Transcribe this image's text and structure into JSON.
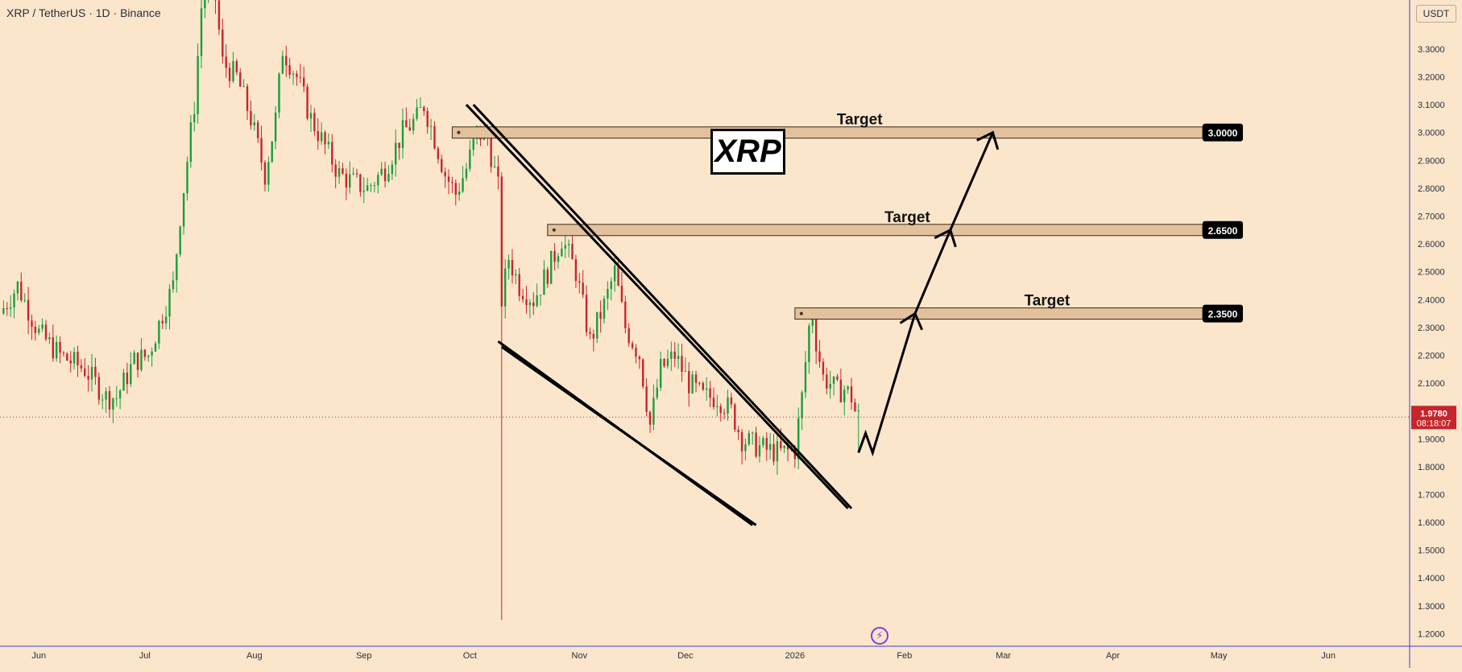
{
  "header": {
    "symbol_title": "XRP / TetherUS · 1D · Binance",
    "currency_button": "USDT"
  },
  "overlay": {
    "xrp_label": "XRP",
    "logo_icon": "lightning-badge-icon"
  },
  "last_price": {
    "value": "1.9780",
    "countdown": "08:18:07"
  },
  "colors": {
    "background": "#fbe6cc",
    "up_candle": "#1a9e3a",
    "down_candle": "#c8242b",
    "price_badge": "#c8242b",
    "zone_fill": "#e2c19c",
    "axis_line": "#3b3bd6"
  },
  "chart_data": {
    "type": "candlestick",
    "title": "XRP / TetherUS · 1D · Binance",
    "y_axis": {
      "unit": "USDT",
      "ylim": [
        1.155,
        3.476
      ],
      "ticks": [
        "1.2000",
        "1.3000",
        "1.4000",
        "1.5000",
        "1.6000",
        "1.7000",
        "1.8000",
        "1.9000",
        "2.1000",
        "2.2000",
        "2.3000",
        "2.4000",
        "2.5000",
        "2.6000",
        "2.7000",
        "2.8000",
        "2.9000",
        "3.0000",
        "3.1000",
        "3.2000",
        "3.3000"
      ]
    },
    "x_axis": {
      "range": [
        "2025-05-21",
        "2026-06-24"
      ],
      "ticks": [
        {
          "label": "Jun",
          "date": "2025-06-01"
        },
        {
          "label": "Jul",
          "date": "2025-07-01"
        },
        {
          "label": "Aug",
          "date": "2025-08-01"
        },
        {
          "label": "Sep",
          "date": "2025-09-01"
        },
        {
          "label": "Oct",
          "date": "2025-10-01"
        },
        {
          "label": "Nov",
          "date": "2025-11-01"
        },
        {
          "label": "Dec",
          "date": "2025-12-01"
        },
        {
          "label": "2026",
          "date": "2026-01-01"
        },
        {
          "label": "Feb",
          "date": "2026-02-01"
        },
        {
          "label": "Mar",
          "date": "2026-03-01"
        },
        {
          "label": "Apr",
          "date": "2026-04-01"
        },
        {
          "label": "May",
          "date": "2026-05-01"
        },
        {
          "label": "Jun",
          "date": "2026-06-01"
        }
      ]
    },
    "price_path": [
      [
        "2025-05-21",
        2.35
      ],
      [
        "2025-05-26",
        2.45
      ],
      [
        "2025-06-01",
        2.28
      ],
      [
        "2025-06-07",
        2.2
      ],
      [
        "2025-06-14",
        2.15
      ],
      [
        "2025-06-20",
        2.05
      ],
      [
        "2025-06-23",
        2.05
      ],
      [
        "2025-06-28",
        2.18
      ],
      [
        "2025-07-02",
        2.2
      ],
      [
        "2025-07-06",
        2.35
      ],
      [
        "2025-07-09",
        2.45
      ],
      [
        "2025-07-11",
        2.7
      ],
      [
        "2025-07-13",
        2.9
      ],
      [
        "2025-07-15",
        3.1
      ],
      [
        "2025-07-17",
        3.45
      ],
      [
        "2025-07-19",
        3.55
      ],
      [
        "2025-07-21",
        3.48
      ],
      [
        "2025-07-23",
        3.25
      ],
      [
        "2025-07-27",
        3.2
      ],
      [
        "2025-07-31",
        3.05
      ],
      [
        "2025-08-04",
        2.85
      ],
      [
        "2025-08-07",
        3.05
      ],
      [
        "2025-08-09",
        3.3
      ],
      [
        "2025-08-13",
        3.2
      ],
      [
        "2025-08-17",
        3.05
      ],
      [
        "2025-08-21",
        2.95
      ],
      [
        "2025-08-25",
        2.85
      ],
      [
        "2025-08-29",
        2.82
      ],
      [
        "2025-09-02",
        2.8
      ],
      [
        "2025-09-07",
        2.87
      ],
      [
        "2025-09-12",
        3.0
      ],
      [
        "2025-09-16",
        3.05
      ],
      [
        "2025-09-18",
        3.1
      ],
      [
        "2025-09-21",
        2.98
      ],
      [
        "2025-09-24",
        2.85
      ],
      [
        "2025-09-27",
        2.78
      ],
      [
        "2025-09-30",
        2.87
      ],
      [
        "2025-10-03",
        3.0
      ],
      [
        "2025-10-06",
        2.98
      ],
      [
        "2025-10-09",
        2.8
      ],
      [
        "2025-10-10",
        2.4
      ],
      [
        "2025-10-12",
        2.55
      ],
      [
        "2025-10-15",
        2.45
      ],
      [
        "2025-10-19",
        2.4
      ],
      [
        "2025-10-23",
        2.5
      ],
      [
        "2025-10-27",
        2.62
      ],
      [
        "2025-10-31",
        2.5
      ],
      [
        "2025-11-04",
        2.25
      ],
      [
        "2025-11-08",
        2.38
      ],
      [
        "2025-11-11",
        2.5
      ],
      [
        "2025-11-14",
        2.3
      ],
      [
        "2025-11-18",
        2.2
      ],
      [
        "2025-11-21",
        1.95
      ],
      [
        "2025-11-24",
        2.15
      ],
      [
        "2025-11-28",
        2.2
      ],
      [
        "2025-12-02",
        2.1
      ],
      [
        "2025-12-06",
        2.05
      ],
      [
        "2025-12-10",
        2.05
      ],
      [
        "2025-12-14",
        2.0
      ],
      [
        "2025-12-17",
        1.9
      ],
      [
        "2025-12-20",
        1.88
      ],
      [
        "2025-12-24",
        1.86
      ],
      [
        "2025-12-28",
        1.85
      ],
      [
        "2026-01-01",
        1.86
      ],
      [
        "2026-01-03",
        2.05
      ],
      [
        "2026-01-05",
        2.3
      ],
      [
        "2026-01-06",
        2.35
      ],
      [
        "2026-01-07",
        2.25
      ],
      [
        "2026-01-09",
        2.12
      ],
      [
        "2026-01-11",
        2.1
      ],
      [
        "2026-01-13",
        2.07
      ],
      [
        "2026-01-15",
        2.08
      ],
      [
        "2026-01-17",
        2.05
      ],
      [
        "2026-01-18",
        2.0
      ],
      [
        "2026-01-19",
        1.978
      ]
    ],
    "annotations": {
      "targets": [
        {
          "label": "Target",
          "price_label": "3.0000",
          "price": 3.0,
          "start": "2025-09-26"
        },
        {
          "label": "Target",
          "price_label": "2.6500",
          "price": 2.65,
          "start": "2025-10-23"
        },
        {
          "label": "Target",
          "price_label": "2.3500",
          "price": 2.35,
          "start": "2026-01-01"
        }
      ],
      "channel_upper": [
        {
          "from": [
            "2025-09-30",
            3.1
          ],
          "to": [
            "2026-01-16",
            1.65
          ]
        },
        {
          "from": [
            "2025-10-02",
            3.1
          ],
          "to": [
            "2026-01-17",
            1.65
          ]
        }
      ],
      "channel_lower": [
        {
          "from": [
            "2025-10-09",
            2.25
          ],
          "to": [
            "2025-12-20",
            1.59
          ]
        },
        {
          "from": [
            "2025-10-10",
            2.23
          ],
          "to": [
            "2025-12-21",
            1.59
          ]
        }
      ],
      "projection_path": [
        [
          "2026-01-19",
          1.85
        ],
        [
          "2026-01-21",
          1.92
        ],
        [
          "2026-01-23",
          1.85
        ],
        [
          "2026-02-04",
          2.35
        ],
        [
          "2026-02-14",
          2.65
        ],
        [
          "2026-02-26",
          3.0
        ]
      ]
    }
  }
}
